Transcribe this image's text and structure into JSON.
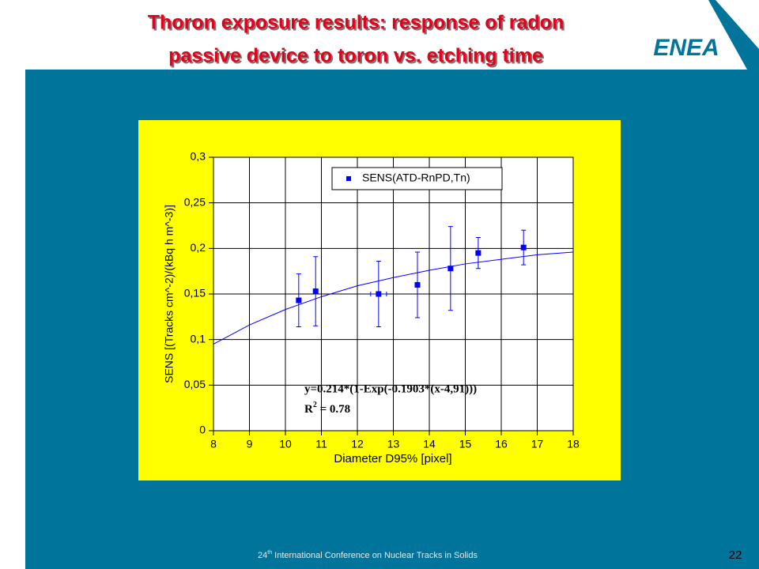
{
  "slide": {
    "title_lines": [
      "Thoron exposure results: response of radon",
      "passive device to toron vs. etching time"
    ],
    "logo": "ENEA",
    "footer": {
      "number": "24",
      "sup": "th",
      "rest": " International Conference on Nuclear Tracks in Solids"
    },
    "page_number": "22"
  },
  "chart_data": {
    "type": "scatter",
    "xlabel": "Diameter D95%  [pixel]",
    "ylabel": "SENS [(Tracks cm^-2)/(kBq h m^-3)]",
    "xlim": [
      8,
      18
    ],
    "xticks": [
      8,
      9,
      10,
      11,
      12,
      13,
      14,
      15,
      16,
      17,
      18
    ],
    "ylim": [
      0,
      0.3
    ],
    "yticks": [
      0,
      {
        "value": 0.05,
        "label": "0,05"
      },
      {
        "value": 0.1,
        "label": "0,1"
      },
      {
        "value": 0.15,
        "label": "0,15"
      },
      {
        "value": 0.2,
        "label": "0,2"
      },
      {
        "value": 0.25,
        "label": "0,25"
      },
      {
        "value": 0.3,
        "label": "0,3"
      }
    ],
    "grid": true,
    "series": [
      {
        "name": "SENS(ATD-RnPD,Tn)",
        "color": "#0000ff",
        "x": [
          10.37,
          10.84,
          12.59,
          13.67,
          14.59,
          15.36,
          16.62
        ],
        "values": [
          0.143,
          0.153,
          0.15,
          0.16,
          0.178,
          0.195,
          0.201
        ],
        "errors": [
          0.029,
          0.038,
          0.036,
          0.036,
          0.046,
          0.017,
          0.019
        ],
        "x_errors": [
          null,
          null,
          0.22,
          null,
          null,
          null,
          null
        ]
      }
    ],
    "fit": {
      "color": "#0000ff",
      "x": [
        8,
        9,
        10,
        11,
        12,
        13,
        14,
        15,
        16,
        17,
        18
      ],
      "values": [
        0.095,
        0.116,
        0.133,
        0.147,
        0.159,
        0.168,
        0.176,
        0.183,
        0.188,
        0.193,
        0.196
      ]
    },
    "annotation": {
      "equation": "y=0.214*(1-Exp(-0.1903*(x-4,91)))",
      "r2_base": "R",
      "r2_sup": "2",
      "r2_value": " = 0.78"
    }
  }
}
